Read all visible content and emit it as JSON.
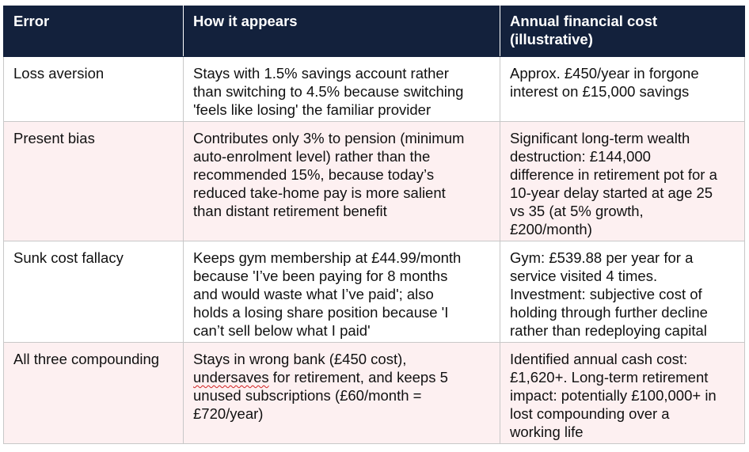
{
  "table": {
    "headers": [
      "Error",
      "How it appears",
      "Annual financial cost\n(illustrative)"
    ],
    "rows": [
      {
        "error": "Loss aversion",
        "appears": "Stays with 1.5% savings account rather\nthan switching to 4.5% because switching\n'feels like losing' the familiar provider",
        "cost": "Approx. £450/year in forgone\ninterest on £15,000 savings"
      },
      {
        "error": "Present bias",
        "appears": "Contributes only 3% to pension (minimum\nauto-enrolment level) rather than the\nrecommended 15%, because today’s\nreduced take-home pay is more salient\nthan distant retirement benefit",
        "cost": "Significant long-term wealth\ndestruction: £144,000\ndifference in retirement pot for a\n10-year delay started at age 25\nvs 35 (at 5% growth,\n£200/month)"
      },
      {
        "error": "Sunk cost fallacy",
        "appears": "Keeps gym membership at £44.99/month\nbecause 'I’ve been paying for 8 months\nand would waste what I’ve paid'; also\nholds a losing share position because 'I\ncan’t sell below what I paid'",
        "cost": "Gym: £539.88 per year for a\nservice visited 4 times.\nInvestment: subjective cost of\nholding through further decline\nrather than redeploying capital"
      },
      {
        "error": "All three compounding",
        "appears_part1": "Stays in wrong bank (£450 cost),\n",
        "appears_squiggle": "undersaves",
        "appears_part2": " for retirement, and keeps 5\nunused subscriptions (£60/month =\n£720/year)",
        "cost": "Identified annual cash cost:\n£1,620+. Long-term retirement\nimpact: potentially £100,000+ in\nlost compounding over a\nworking life"
      }
    ]
  }
}
